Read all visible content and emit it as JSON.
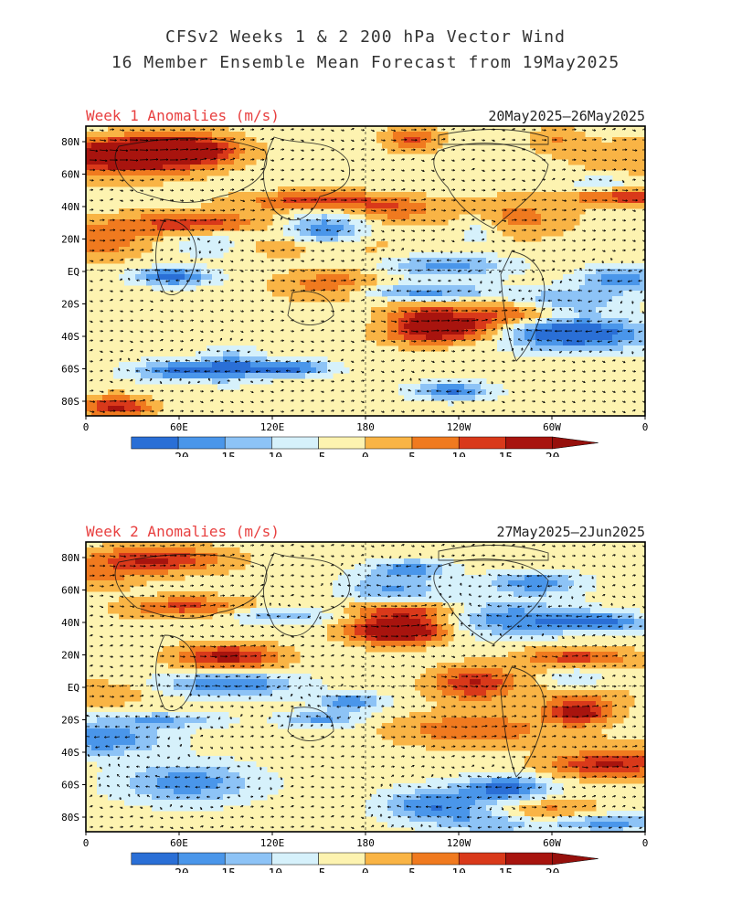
{
  "title": {
    "line1": "CFSv2 Weeks 1 & 2 200 hPa Vector Wind",
    "line2": "16 Member Ensemble Mean Forecast from 19May2025"
  },
  "panels": [
    {
      "label": "Week 1 Anomalies (m/s)",
      "date_range": "20May2025–26May2025",
      "seed": 11
    },
    {
      "label": "Week 2 Anomalies (m/s)",
      "date_range": "27May2025–2Jun2025",
      "seed": 37
    }
  ],
  "lat_labels": [
    "80N",
    "60N",
    "40N",
    "20N",
    "EQ",
    "20S",
    "40S",
    "60S",
    "80S"
  ],
  "lon_labels": [
    "0",
    "60E",
    "120E",
    "180",
    "120W",
    "60W",
    "0"
  ],
  "colorbar": {
    "ticks": [
      "−20",
      "−15",
      "−10",
      "−5",
      "0",
      "5",
      "10",
      "15",
      "20"
    ],
    "colors": [
      "#2a6fd6",
      "#4a96ea",
      "#8dc3f6",
      "#d6f1fb",
      "#fdf3b0",
      "#f9b445",
      "#f07a1f",
      "#d9391a",
      "#a8140e"
    ],
    "low_arrow": "#1a55c4",
    "high_arrow": "#96100c"
  },
  "label_color": "#e84040"
}
